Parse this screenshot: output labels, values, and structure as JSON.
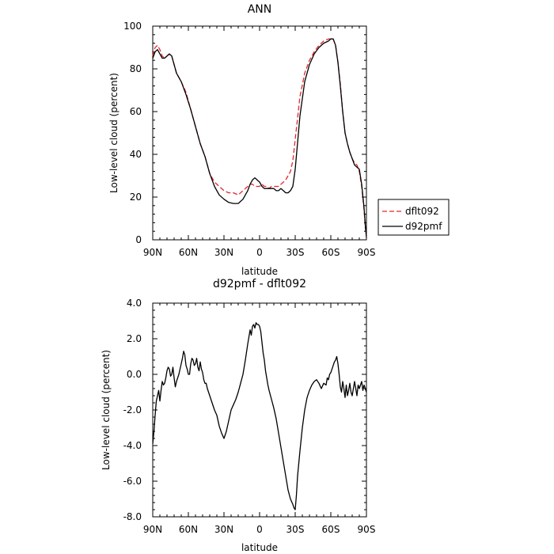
{
  "chart_data": [
    {
      "type": "line",
      "title": "ANN",
      "xlabel": "latitude",
      "ylabel": "Low-level cloud (percent)",
      "xlim": [
        90,
        -90
      ],
      "ylim": [
        0,
        100
      ],
      "x_tick_values": [
        90,
        60,
        30,
        0,
        -30,
        -60,
        -90
      ],
      "x_tick_labels": [
        "90N",
        "60N",
        "30N",
        "0",
        "30S",
        "60S",
        "90S"
      ],
      "y_tick_values": [
        0,
        20,
        40,
        60,
        80,
        100
      ],
      "y_tick_labels": [
        "0",
        "20",
        "40",
        "60",
        "80",
        "100"
      ],
      "legend_position": "right",
      "series": [
        {
          "name": "dflt092",
          "color": "#e4272b",
          "dash": "dashed",
          "x": [
            90,
            88,
            86,
            84,
            82,
            80,
            78,
            76,
            74,
            70,
            66,
            62,
            58,
            54,
            50,
            46,
            42,
            38,
            34,
            30,
            26,
            22,
            18,
            14,
            10,
            8,
            6,
            4,
            2,
            0,
            -2,
            -4,
            -6,
            -8,
            -10,
            -12,
            -14,
            -16,
            -18,
            -20,
            -22,
            -24,
            -26,
            -28,
            -30,
            -34,
            -38,
            -42,
            -46,
            -50,
            -54,
            -58,
            -60,
            -62,
            -64,
            -66,
            -68,
            -70,
            -72,
            -74,
            -76,
            -78,
            -80,
            -82,
            -84,
            -86,
            -88,
            -89,
            -90
          ],
          "y": [
            86,
            90,
            91,
            89,
            86,
            85,
            86,
            87,
            86,
            78,
            74,
            69,
            61,
            53,
            45,
            39,
            31,
            27,
            25,
            23,
            22,
            22,
            21,
            23,
            25,
            26,
            26,
            25,
            25,
            25,
            26,
            25,
            25,
            24,
            25,
            25,
            25,
            25,
            26,
            27,
            28,
            30,
            32,
            37,
            47,
            67,
            78,
            84,
            88,
            91,
            93,
            94,
            94,
            94,
            91,
            83,
            73,
            60,
            50,
            45,
            41,
            38,
            36,
            35,
            32,
            25,
            14,
            6,
            2
          ]
        },
        {
          "name": "d92pmf",
          "color": "#000000",
          "dash": "solid",
          "x": [
            90,
            88,
            86,
            84,
            82,
            80,
            78,
            76,
            74,
            70,
            66,
            62,
            58,
            54,
            50,
            46,
            42,
            38,
            34,
            30,
            26,
            22,
            18,
            14,
            10,
            8,
            6,
            4,
            2,
            0,
            -2,
            -4,
            -6,
            -8,
            -10,
            -12,
            -14,
            -16,
            -18,
            -20,
            -22,
            -24,
            -26,
            -28,
            -30,
            -34,
            -38,
            -42,
            -46,
            -50,
            -54,
            -58,
            -60,
            -62,
            -64,
            -66,
            -68,
            -70,
            -72,
            -74,
            -76,
            -78,
            -80,
            -82,
            -84,
            -86,
            -88,
            -89,
            -90
          ],
          "y": [
            85,
            88,
            89,
            87,
            85,
            85,
            86,
            87,
            86,
            78,
            74,
            68,
            61,
            53,
            45,
            39,
            31,
            25,
            21,
            19,
            17.5,
            17,
            17,
            19,
            23,
            26,
            28,
            29,
            28,
            27,
            25,
            24,
            24,
            24,
            24,
            24,
            23,
            23,
            24,
            23,
            22,
            22,
            23,
            25,
            33,
            58,
            74,
            82,
            87,
            90,
            92,
            93,
            94,
            94,
            91,
            83,
            72,
            60,
            50,
            45,
            41,
            38,
            35,
            34,
            33,
            26,
            15,
            7,
            1
          ]
        }
      ]
    },
    {
      "type": "line",
      "title": "d92pmf - dflt092",
      "xlabel": "latitude",
      "ylabel": "Low-level cloud (percent)",
      "xlim": [
        90,
        -90
      ],
      "ylim": [
        -8,
        4
      ],
      "x_tick_values": [
        90,
        60,
        30,
        0,
        -30,
        -60,
        -90
      ],
      "x_tick_labels": [
        "90N",
        "60N",
        "30N",
        "0",
        "30S",
        "60S",
        "90S"
      ],
      "y_tick_values": [
        -8,
        -6,
        -4,
        -2,
        0,
        2,
        4
      ],
      "y_tick_labels": [
        "-8.0",
        "-6.0",
        "-4.0",
        "-2.0",
        "0.0",
        "2.0",
        "4.0"
      ],
      "series": [
        {
          "color": "#000000",
          "x": [
            90,
            89,
            88,
            87,
            86,
            85,
            84,
            83,
            82,
            81,
            80,
            79,
            78,
            77,
            76,
            75,
            74,
            73,
            72,
            71,
            70,
            68,
            66,
            65,
            64,
            63,
            62,
            61,
            60,
            59,
            58,
            57,
            56,
            55,
            54,
            53,
            52,
            51,
            50,
            49,
            48,
            47,
            46,
            45,
            44,
            42,
            40,
            38,
            36,
            34,
            32,
            30,
            28,
            26,
            24,
            22,
            20,
            18,
            16,
            14,
            12,
            10,
            9,
            8,
            7,
            6,
            5,
            4,
            3,
            2,
            1,
            0,
            -1,
            -2,
            -3,
            -4,
            -5,
            -6,
            -7,
            -8,
            -10,
            -12,
            -14,
            -16,
            -18,
            -20,
            -22,
            -24,
            -26,
            -28,
            -29,
            -30,
            -31,
            -32,
            -34,
            -36,
            -38,
            -40,
            -42,
            -44,
            -46,
            -48,
            -50,
            -52,
            -54,
            -56,
            -57,
            -58,
            -59,
            -60,
            -61,
            -62,
            -63,
            -64,
            -65,
            -66,
            -67,
            -68,
            -69,
            -70,
            -71,
            -72,
            -73,
            -74,
            -75,
            -76,
            -77,
            -78,
            -79,
            -80,
            -81,
            -82,
            -83,
            -84,
            -85,
            -86,
            -87,
            -88,
            -89,
            -90
          ],
          "y": [
            -3.9,
            -3.2,
            -2.3,
            -1.5,
            -1.2,
            -0.9,
            -1.5,
            -0.9,
            -0.4,
            -0.6,
            -0.5,
            -0.2,
            0.2,
            0.4,
            0.3,
            -0.1,
            0.0,
            0.4,
            -0.2,
            -0.7,
            -0.4,
            0.0,
            0.6,
            0.9,
            1.3,
            1.1,
            0.5,
            0.3,
            0.0,
            0.0,
            0.6,
            0.9,
            0.8,
            0.5,
            0.6,
            0.9,
            0.4,
            0.2,
            0.7,
            0.3,
            0.1,
            -0.3,
            -0.5,
            -0.5,
            -0.8,
            -1.2,
            -1.6,
            -2.0,
            -2.3,
            -2.9,
            -3.3,
            -3.6,
            -3.2,
            -2.6,
            -2.0,
            -1.7,
            -1.4,
            -1.0,
            -0.5,
            0.0,
            0.8,
            1.7,
            2.1,
            2.5,
            2.2,
            2.7,
            2.8,
            2.6,
            2.9,
            2.8,
            2.8,
            2.7,
            2.4,
            1.8,
            1.2,
            0.8,
            0.2,
            -0.2,
            -0.6,
            -0.9,
            -1.4,
            -1.9,
            -2.5,
            -3.3,
            -4.1,
            -4.9,
            -5.7,
            -6.5,
            -7.0,
            -7.3,
            -7.5,
            -7.6,
            -6.8,
            -5.7,
            -4.3,
            -3.0,
            -2.0,
            -1.3,
            -0.9,
            -0.6,
            -0.4,
            -0.3,
            -0.5,
            -0.8,
            -0.5,
            -0.6,
            -0.2,
            -0.3,
            0.0,
            0.1,
            0.3,
            0.5,
            0.7,
            0.8,
            1.0,
            0.6,
            0.0,
            -0.7,
            -1.0,
            -0.4,
            -0.8,
            -1.3,
            -0.6,
            -1.2,
            -0.9,
            -0.5,
            -1.0,
            -1.2,
            -0.8,
            -0.4,
            -0.8,
            -1.2,
            -0.6,
            -0.8,
            -0.6,
            -0.4,
            -0.9,
            -0.6,
            -0.8,
            -1.0
          ]
        }
      ]
    }
  ]
}
